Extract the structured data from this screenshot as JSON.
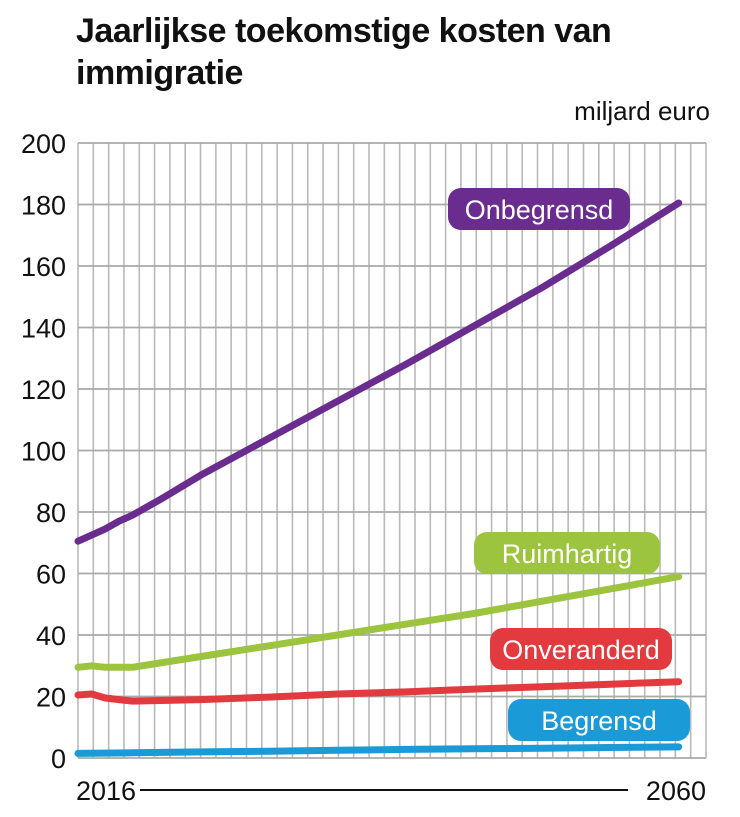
{
  "chart_data": {
    "type": "line",
    "title": "Jaarlijkse toekomstige kosten van immigratie",
    "unit": "miljard euro",
    "x_tick_labels": [
      "2016",
      "2060"
    ],
    "ylim": [
      0,
      200
    ],
    "y_ticks": [
      0,
      20,
      40,
      60,
      80,
      100,
      120,
      140,
      160,
      180,
      200
    ],
    "grid": true,
    "series": [
      {
        "name": "Onbegrensd",
        "color": "#6a2c8e",
        "x": [
          2016,
          2017,
          2018,
          2019,
          2020,
          2022,
          2025,
          2030,
          2035,
          2040,
          2045,
          2050,
          2055,
          2060
        ],
        "values": [
          70.5,
          72.5,
          74.5,
          77,
          79,
          84,
          92,
          104,
          116,
          128,
          140.5,
          153,
          166.5,
          180.5
        ]
      },
      {
        "name": "Ruimhartig",
        "color": "#9cc43e",
        "x": [
          2016,
          2017,
          2018,
          2019,
          2020,
          2025,
          2030,
          2035,
          2040,
          2045,
          2050,
          2055,
          2060
        ],
        "values": [
          29.5,
          30,
          29.5,
          29.5,
          29.5,
          33,
          36.5,
          40,
          43.5,
          47,
          51,
          55,
          59
        ]
      },
      {
        "name": "Onveranderd",
        "color": "#e23a3f",
        "x": [
          2016,
          2017,
          2018,
          2019,
          2020,
          2025,
          2030,
          2035,
          2040,
          2045,
          2050,
          2055,
          2060
        ],
        "values": [
          20.5,
          20.8,
          19.5,
          19,
          18.5,
          19,
          19.8,
          20.8,
          21.5,
          22.4,
          23.2,
          24,
          24.8
        ]
      },
      {
        "name": "Begrensd",
        "color": "#1a9ad6",
        "x": [
          2016,
          2020,
          2025,
          2030,
          2035,
          2040,
          2045,
          2050,
          2055,
          2060
        ],
        "values": [
          1.5,
          1.7,
          2,
          2.2,
          2.5,
          2.8,
          3,
          3.2,
          3.4,
          3.6
        ]
      }
    ]
  }
}
